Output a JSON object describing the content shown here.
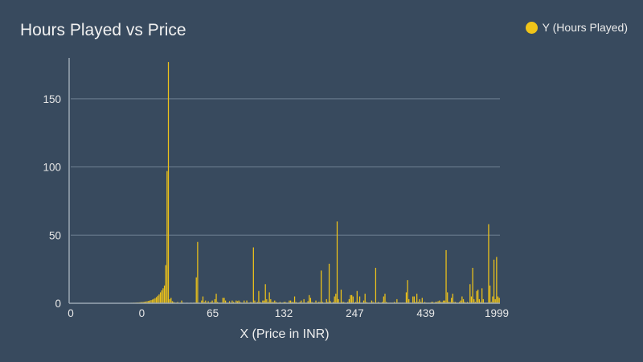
{
  "colors": {
    "background": "#384a5e",
    "bar": "#f0c419",
    "grid": "#6f8193",
    "axis": "#9aa7b4"
  },
  "chart_data": {
    "type": "bar",
    "title": "Hours Played vs Price",
    "xlabel": "X (Price in INR)",
    "ylabel": "",
    "legend": {
      "label": "Y (Hours Played)",
      "position": "top-right"
    },
    "grid": true,
    "ylim": [
      0,
      180
    ],
    "y_ticks": [
      0,
      50,
      100,
      150
    ],
    "x_tick_labels": [
      "0",
      "0",
      "65",
      "132",
      "247",
      "439",
      "1999"
    ],
    "values": [
      0.1,
      0.1,
      0.1,
      0.1,
      0.1,
      0.1,
      0.1,
      0.1,
      0.1,
      0.1,
      0.1,
      0.1,
      0.1,
      0.1,
      0.1,
      0.1,
      0.1,
      0.1,
      0.1,
      0.1,
      0.1,
      0.1,
      0.1,
      0.1,
      0.1,
      0.1,
      0.1,
      0.1,
      0.1,
      0.1,
      0.1,
      0.1,
      0.1,
      0.1,
      0.1,
      0.1,
      0.1,
      0.2,
      0.2,
      0.2,
      0.2,
      0.2,
      0.3,
      0.3,
      0.3,
      0.4,
      0.4,
      0.5,
      0.5,
      0.6,
      0.6,
      0.7,
      0.8,
      0.9,
      1.0,
      1.1,
      1.3,
      1.5,
      1.7,
      2.0,
      2.3,
      2.7,
      3.2,
      3.8,
      4.5,
      5.5,
      6.5,
      8,
      9.5,
      11,
      13,
      28,
      97,
      177,
      3,
      4,
      1.5,
      1,
      0.5,
      0.5,
      1,
      0.3,
      0.5,
      2,
      0.5,
      0.3,
      0.2,
      0.5,
      0.3,
      0.2,
      0.5,
      0.3,
      0.5,
      0.5,
      19,
      45,
      0.5,
      0.3,
      2,
      5,
      1,
      2,
      0.5,
      1.5,
      0.5,
      1,
      2,
      0.5,
      3,
      7,
      1,
      0.5,
      0.5,
      0.5,
      4,
      4,
      2,
      0.5,
      0.5,
      1.5,
      0.5,
      2,
      1,
      0.5,
      2,
      1.5,
      2,
      1,
      0.5,
      0.5,
      2,
      0.5,
      2,
      0.5,
      0.5,
      1,
      0.5,
      41,
      2,
      0.5,
      1,
      9,
      1,
      0.5,
      2,
      2,
      14,
      3,
      1,
      8,
      3,
      1,
      1,
      2,
      1,
      0.5,
      0.5,
      1,
      0.5,
      0.5,
      1,
      1,
      0.5,
      0.5,
      2,
      2,
      1,
      1,
      5,
      1,
      0.5,
      0.5,
      1,
      2,
      0.5,
      3,
      0.5,
      0.5,
      1.5,
      6,
      4,
      1,
      0.5,
      0.5,
      2,
      0.5,
      1,
      1,
      24,
      1,
      0.5,
      0.5,
      3,
      1,
      29,
      1.5,
      0.5,
      1,
      5,
      7,
      60,
      3,
      0.5,
      10,
      1,
      1,
      0.5,
      0.5,
      1,
      3,
      6,
      6,
      5,
      0.5,
      1,
      9,
      1,
      5,
      0.5,
      0.5,
      2,
      7,
      1,
      0.5,
      0.5,
      0.5,
      2,
      1,
      0.5,
      26,
      0.5,
      1,
      0.5,
      0.5,
      1,
      5,
      7,
      1,
      0.5,
      0.5,
      0.5,
      0.5,
      0.5,
      1,
      0.5,
      3,
      0.5,
      0.5,
      0.5,
      0.5,
      0.5,
      0.5,
      8,
      17,
      3,
      0.5,
      0.5,
      5,
      5,
      1,
      7,
      1,
      3,
      1,
      4,
      0.5,
      1,
      0.5,
      0.5,
      0.5,
      0.5,
      1,
      1,
      0.5,
      1,
      1,
      1.5,
      2,
      1,
      1,
      2,
      2,
      39,
      8,
      1,
      1,
      4,
      7,
      1,
      1,
      0.5,
      0.5,
      1,
      2,
      5,
      3,
      1,
      0.5,
      1,
      0.5,
      14,
      5,
      26,
      3,
      1,
      9,
      10,
      3,
      1,
      11,
      3,
      0.5,
      0.5,
      0.5,
      58,
      13,
      1,
      5,
      32,
      3,
      34,
      5,
      4
    ]
  }
}
